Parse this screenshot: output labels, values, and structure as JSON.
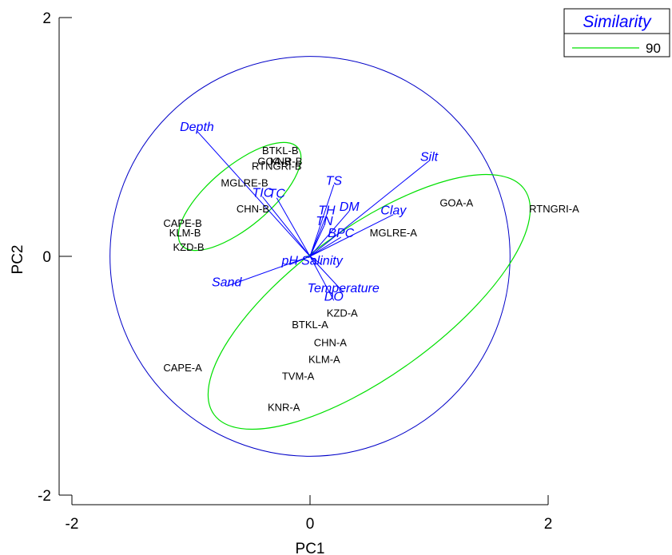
{
  "chart_data": {
    "type": "scatter",
    "title": "",
    "xlabel": "PC1",
    "ylabel": "PC2",
    "xlim": [
      -2,
      2
    ],
    "ylim": [
      -2,
      2
    ],
    "x_ticks": [
      "-2",
      "0",
      "2"
    ],
    "y_ticks": [
      "2",
      "0",
      "-2"
    ],
    "legend": {
      "title": "Similarity",
      "entries": [
        {
          "label": "90",
          "color": "#00e000"
        }
      ],
      "placement": "top-right"
    },
    "points": [
      {
        "label": "BTKL-B",
        "x": -0.25,
        "y": 0.89
      },
      {
        "label": "GOA-B",
        "x": -0.3,
        "y": 0.8
      },
      {
        "label": "KNR-B",
        "x": -0.2,
        "y": 0.8
      },
      {
        "label": "RTNGRI-B",
        "x": -0.28,
        "y": 0.76
      },
      {
        "label": "MGLRE-B",
        "x": -0.55,
        "y": 0.62
      },
      {
        "label": "CHN-B",
        "x": -0.48,
        "y": 0.4
      },
      {
        "label": "CAPE-B",
        "x": -1.07,
        "y": 0.28
      },
      {
        "label": "KLM-B",
        "x": -1.05,
        "y": 0.2
      },
      {
        "label": "KZD-B",
        "x": -1.02,
        "y": 0.08
      },
      {
        "label": "GOA-A",
        "x": 1.23,
        "y": 0.45
      },
      {
        "label": "RTNGRI-A",
        "x": 2.05,
        "y": 0.4
      },
      {
        "label": "MGLRE-A",
        "x": 0.7,
        "y": 0.2
      },
      {
        "label": "KZD-A",
        "x": 0.27,
        "y": -0.47
      },
      {
        "label": "BTKL-A",
        "x": 0.0,
        "y": -0.57
      },
      {
        "label": "CHN-A",
        "x": 0.17,
        "y": -0.72
      },
      {
        "label": "KLM-A",
        "x": 0.12,
        "y": -0.86
      },
      {
        "label": "CAPE-A",
        "x": -1.07,
        "y": -0.93
      },
      {
        "label": "TVM-A",
        "x": -0.1,
        "y": -1.0
      },
      {
        "label": "KNR-A",
        "x": -0.22,
        "y": -1.26
      }
    ],
    "vectors": [
      {
        "label": "Depth",
        "x": -0.95,
        "y": 1.05
      },
      {
        "label": "Silt",
        "x": 1.0,
        "y": 0.8
      },
      {
        "label": "TS",
        "x": 0.2,
        "y": 0.6
      },
      {
        "label": "TIC",
        "x": -0.4,
        "y": 0.5
      },
      {
        "label": "TC",
        "x": -0.28,
        "y": 0.49
      },
      {
        "label": "DM",
        "x": 0.33,
        "y": 0.38
      },
      {
        "label": "TH",
        "x": 0.14,
        "y": 0.35
      },
      {
        "label": "Clay",
        "x": 0.7,
        "y": 0.35
      },
      {
        "label": "TN",
        "x": 0.12,
        "y": 0.26
      },
      {
        "label": "BPC",
        "x": 0.26,
        "y": 0.16
      },
      {
        "label": "Sand",
        "x": -0.7,
        "y": -0.25
      },
      {
        "label": "pH",
        "x": -0.17,
        "y": -0.07
      },
      {
        "label": "Salinity",
        "x": 0.1,
        "y": -0.07
      },
      {
        "label": "Temperature",
        "x": 0.28,
        "y": -0.3
      },
      {
        "label": "DO",
        "x": 0.2,
        "y": -0.37
      }
    ],
    "circle": {
      "center": [
        0,
        0
      ],
      "radius": 1.68,
      "color": "#0000c8"
    }
  }
}
